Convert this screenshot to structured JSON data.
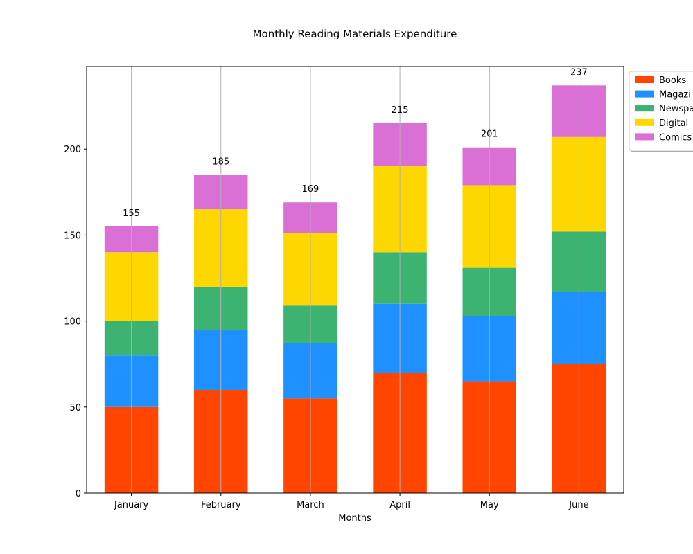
{
  "chart_data": {
    "type": "bar",
    "stacked": true,
    "title": "Monthly Reading Materials Expenditure",
    "xlabel": "Months",
    "ylabel": "",
    "categories": [
      "January",
      "February",
      "March",
      "April",
      "May",
      "June"
    ],
    "series": [
      {
        "name": "Books",
        "color": "#ff4500",
        "values": [
          50,
          60,
          55,
          70,
          65,
          75
        ]
      },
      {
        "name": "Magazi",
        "color": "#1e90ff",
        "values": [
          30,
          35,
          32,
          40,
          38,
          42
        ]
      },
      {
        "name": "Newspa",
        "color": "#3cb371",
        "values": [
          20,
          25,
          22,
          30,
          28,
          35
        ]
      },
      {
        "name": "Digital",
        "color": "#ffd700",
        "values": [
          40,
          45,
          42,
          50,
          48,
          55
        ]
      },
      {
        "name": "Comics",
        "color": "#da70d6",
        "values": [
          15,
          20,
          18,
          25,
          22,
          30
        ]
      }
    ],
    "totals": [
      "155",
      "185",
      "169",
      "215",
      "201",
      "237"
    ],
    "ylim": [
      0,
      248
    ],
    "yticks": [
      "0",
      "50",
      "100",
      "150",
      "200"
    ],
    "grid": "vertical",
    "legend": "top-right, outside"
  }
}
